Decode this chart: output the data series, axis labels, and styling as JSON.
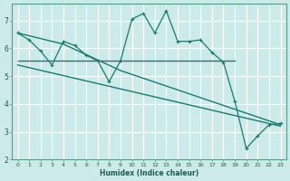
{
  "xlabel": "Humidex (Indice chaleur)",
  "bg_color": "#cdeaea",
  "grid_color": "#ffffff",
  "line_color": "#1a7a6e",
  "xlim": [
    -0.5,
    23.5
  ],
  "ylim": [
    2,
    7.6
  ],
  "yticks": [
    2,
    3,
    4,
    5,
    6,
    7
  ],
  "xticks": [
    0,
    1,
    2,
    3,
    4,
    5,
    6,
    7,
    8,
    9,
    10,
    11,
    12,
    13,
    14,
    15,
    16,
    17,
    18,
    19,
    20,
    21,
    22,
    23
  ],
  "jagged_x": [
    0,
    1,
    2,
    3,
    4,
    5,
    6,
    7,
    8,
    9,
    10,
    11,
    12,
    13,
    14,
    15,
    16,
    17,
    18,
    19,
    20,
    21,
    22,
    23
  ],
  "jagged_y": [
    6.55,
    6.3,
    5.9,
    5.4,
    6.25,
    6.1,
    5.75,
    5.55,
    4.8,
    5.55,
    7.05,
    7.25,
    6.55,
    7.35,
    6.25,
    6.25,
    6.3,
    5.85,
    5.5,
    4.1,
    2.4,
    2.85,
    3.25,
    3.3
  ],
  "trend1_x": [
    0,
    19
  ],
  "trend1_y": [
    5.55,
    5.55
  ],
  "trend2_x": [
    0,
    23
  ],
  "trend2_y": [
    5.4,
    3.2
  ],
  "trend3_x": [
    0,
    4,
    9,
    23
  ],
  "trend3_y": [
    6.55,
    6.15,
    5.2,
    3.25
  ]
}
